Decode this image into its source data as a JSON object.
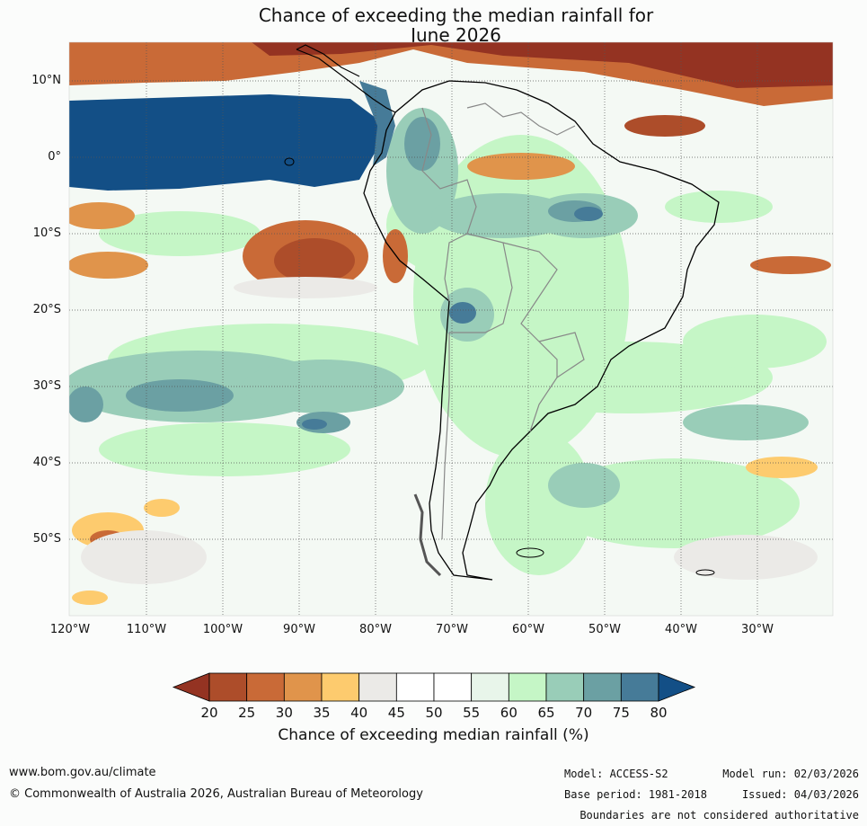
{
  "title_line1": "Chance of exceeding the median rainfall for",
  "title_line2": "June 2026",
  "lat_labels": [
    "10°N",
    "0°",
    "10°S",
    "20°S",
    "30°S",
    "40°S",
    "50°S"
  ],
  "lon_labels": [
    "120°W",
    "110°W",
    "100°W",
    "90°W",
    "80°W",
    "70°W",
    "60°W",
    "50°W",
    "40°W",
    "30°W"
  ],
  "colorbar": {
    "ticks": [
      "20",
      "25",
      "30",
      "35",
      "40",
      "45",
      "50",
      "55",
      "60",
      "65",
      "70",
      "75",
      "80"
    ],
    "colors": [
      "#943322",
      "#ad4d2a",
      "#c96a37",
      "#e0944b",
      "#fdcb6e",
      "#ebeae7",
      "#ffffff",
      "#ffffff",
      "#e8f5ea",
      "#c5f6c6",
      "#99cdb8",
      "#6ba0a3",
      "#467b98",
      "#134f86"
    ],
    "title": "Chance of exceeding median rainfall (%)"
  },
  "footer": {
    "url": "www.bom.gov.au/climate",
    "copyright": "© Commonwealth of Australia 2026, Australian Bureau of Meteorology",
    "model": "Model: ACCESS-S2",
    "base_period": "Base period: 1981-2018",
    "model_run": "Model run: 02/03/2026",
    "issued": "Issued: 04/03/2026",
    "disclaimer": "Boundaries are not considered authoritative"
  }
}
